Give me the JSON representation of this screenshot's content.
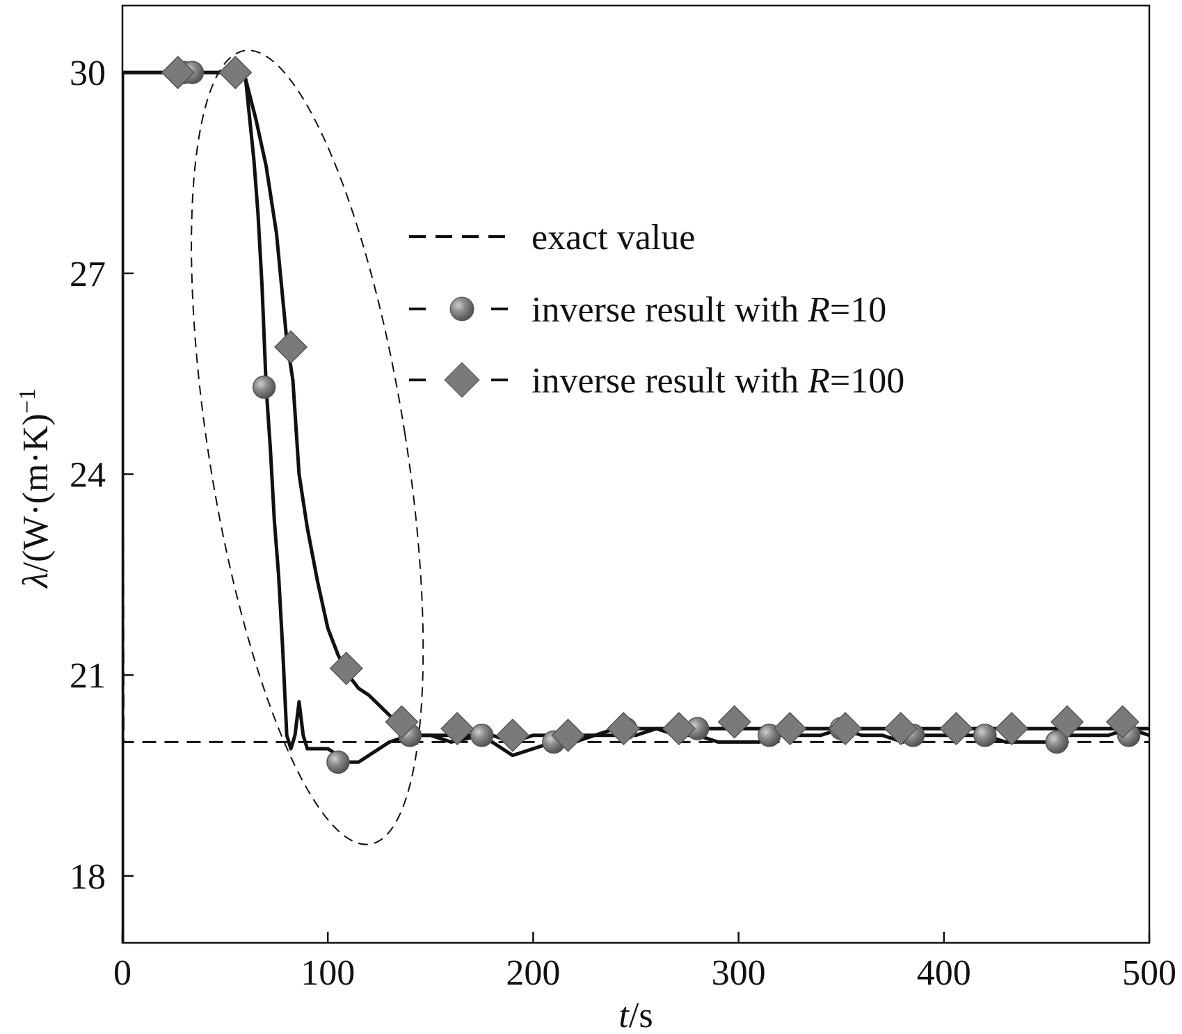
{
  "chart_data": {
    "type": "line",
    "xlabel_parts": {
      "italic": "t",
      "rest": "/s"
    },
    "ylabel_parts": {
      "italic": "λ",
      "rest": "/(W·(m·K)",
      "sup": "−1",
      "close": ""
    },
    "xlim": [
      0,
      500
    ],
    "ylim": [
      17,
      31
    ],
    "xticks": [
      0,
      100,
      200,
      300,
      400,
      500
    ],
    "xtick_labels": [
      "0",
      "100",
      "200",
      "300",
      "400",
      "500"
    ],
    "yticks": [
      18,
      21,
      24,
      27,
      30
    ],
    "ytick_labels": [
      "18",
      "21",
      "24",
      "27",
      "30"
    ],
    "grid": false,
    "legend_position": "upper-middle",
    "legend": [
      {
        "text": "exact value",
        "italic_part": "",
        "suffix": ""
      },
      {
        "text": "inverse result with ",
        "italic_part": "R",
        "suffix": "=10"
      },
      {
        "text": "inverse result with ",
        "italic_part": "R",
        "suffix": "=100"
      }
    ],
    "colors": {
      "axis": "#111111",
      "line": "#111111",
      "marker": "#7a7a7a",
      "marker_edge": "#555555"
    },
    "series": [
      {
        "key": "exact",
        "style": "dashed",
        "x": [
          0,
          0,
          0.5,
          500
        ],
        "y": [
          17,
          30,
          20,
          20
        ]
      },
      {
        "key": "r10",
        "marker": "circle",
        "x": [
          0,
          0,
          20,
          40,
          55,
          60,
          62,
          64,
          66,
          68,
          70,
          72,
          74,
          76,
          78,
          80,
          82,
          84,
          86,
          88,
          90,
          95,
          100,
          105,
          110,
          115,
          120,
          130,
          140,
          150,
          160,
          175,
          185,
          190,
          200,
          210,
          220,
          230,
          240,
          250,
          260,
          270,
          280,
          290,
          300,
          310,
          320,
          330,
          340,
          350,
          360,
          370,
          380,
          390,
          400,
          410,
          420,
          430,
          440,
          450,
          460,
          470,
          480,
          490,
          500
        ],
        "y": [
          17,
          30,
          30,
          30,
          30,
          29.9,
          29.3,
          28.7,
          27.9,
          26.8,
          25.3,
          24.4,
          23.3,
          22.5,
          21.4,
          20.1,
          19.9,
          20.1,
          20.6,
          20.1,
          19.9,
          19.9,
          19.9,
          19.8,
          19.7,
          19.7,
          19.8,
          20.0,
          20.1,
          20.1,
          20.0,
          20.1,
          19.9,
          19.8,
          19.9,
          20.0,
          20.0,
          20.1,
          20.1,
          20.1,
          20.2,
          20.1,
          20.1,
          20.0,
          20.0,
          20.0,
          20.1,
          20.1,
          20.1,
          20.2,
          20.1,
          20.1,
          20.0,
          20.1,
          20.1,
          20.1,
          20.1,
          20.0,
          20.0,
          20.0,
          20.1,
          20.1,
          20.1,
          20.2,
          20.1
        ],
        "markers_x": [
          30,
          34,
          69,
          105,
          140,
          175,
          210,
          245,
          280,
          315,
          350,
          385,
          420,
          455,
          490
        ],
        "markers_y": [
          30,
          30,
          25.3,
          19.7,
          20.1,
          20.1,
          20.0,
          20.2,
          20.2,
          20.1,
          20.2,
          20.1,
          20.1,
          20.0,
          20.1
        ]
      },
      {
        "key": "r100",
        "marker": "diamond",
        "x": [
          0,
          0,
          20,
          40,
          55,
          60,
          65,
          70,
          75,
          80,
          83,
          86,
          90,
          95,
          100,
          105,
          110,
          115,
          120,
          130,
          140,
          150,
          160,
          170,
          180,
          190,
          200,
          210,
          220,
          230,
          240,
          250,
          260,
          270,
          280,
          290,
          300,
          310,
          320,
          330,
          340,
          350,
          360,
          370,
          380,
          390,
          400,
          410,
          420,
          430,
          440,
          450,
          460,
          470,
          480,
          490,
          500
        ],
        "y": [
          17,
          30,
          30,
          30,
          30,
          29.9,
          29.3,
          28.6,
          27.6,
          26.0,
          25.4,
          24.0,
          23.2,
          22.4,
          21.7,
          21.3,
          21.0,
          20.8,
          20.7,
          20.4,
          20.1,
          20.1,
          20.1,
          20.1,
          20.1,
          20.0,
          20.1,
          20.1,
          20.1,
          20.1,
          20.2,
          20.2,
          20.2,
          20.2,
          20.2,
          20.2,
          20.2,
          20.2,
          20.2,
          20.2,
          20.2,
          20.2,
          20.2,
          20.2,
          20.2,
          20.2,
          20.2,
          20.2,
          20.2,
          20.2,
          20.2,
          20.2,
          20.2,
          20.2,
          20.2,
          20.2,
          20.2
        ],
        "markers_x": [
          27,
          55,
          82,
          109,
          136,
          163,
          190,
          217,
          244,
          271,
          298,
          325,
          352,
          379,
          406,
          433,
          460,
          487
        ],
        "markers_y": [
          30,
          30,
          25.9,
          21.1,
          20.3,
          20.2,
          20.1,
          20.1,
          20.2,
          20.2,
          20.3,
          20.2,
          20.2,
          20.2,
          20.2,
          20.2,
          20.3,
          20.3
        ]
      }
    ],
    "annotation": {
      "type": "dashed-ellipse",
      "center": [
        90,
        24.4
      ],
      "rx": 48,
      "ry": 6.0
    }
  }
}
